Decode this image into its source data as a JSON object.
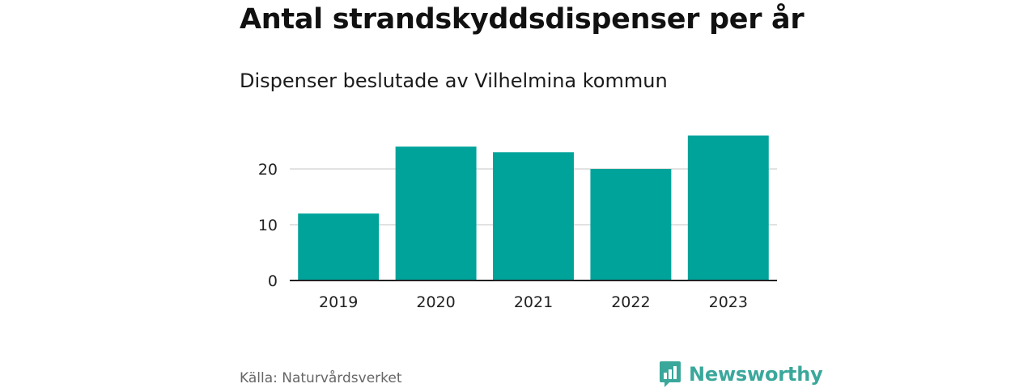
{
  "header": {
    "title": "Antal strandskyddsdispenser per år",
    "subtitle": "Dispenser beslutade av Vilhelmina kommun"
  },
  "footer": {
    "source": "Källa: Naturvårdsverket",
    "brand": "Newsworthy"
  },
  "colors": {
    "bar": "#00a39a",
    "grid": "#d9d9d9",
    "axis": "#222222",
    "brand": "#3aa79b"
  },
  "chart_data": {
    "type": "bar",
    "title": "Antal strandskyddsdispenser per år",
    "subtitle": "Dispenser beslutade av Vilhelmina kommun",
    "xlabel": "",
    "ylabel": "",
    "categories": [
      "2019",
      "2020",
      "2021",
      "2022",
      "2023"
    ],
    "values": [
      12,
      24,
      23,
      20,
      26
    ],
    "ylim": [
      0,
      27
    ],
    "yticks": [
      0,
      10,
      20
    ],
    "grid": true,
    "legend": "none"
  }
}
